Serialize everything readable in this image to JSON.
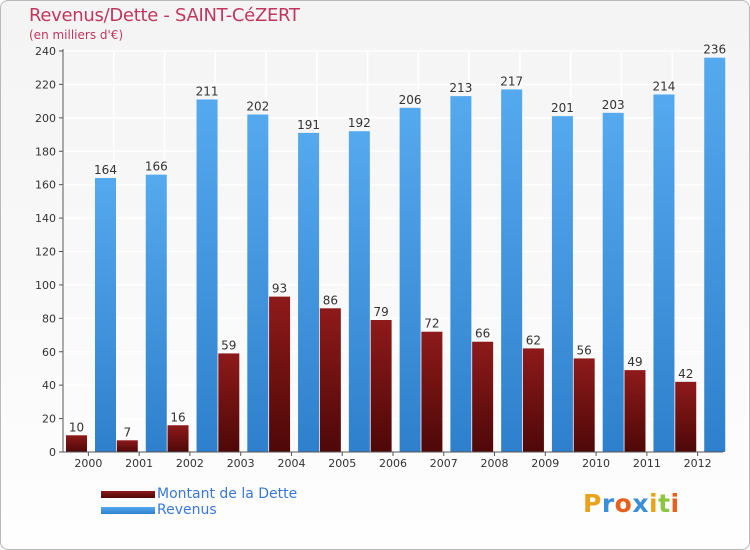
{
  "chart_data": {
    "type": "bar",
    "title": "Revenus/Dette - SAINT-CéZERT",
    "subtitle": "(en milliers d'€)",
    "categories": [
      "2000",
      "2001",
      "2002",
      "2003",
      "2004",
      "2005",
      "2006",
      "2007",
      "2008",
      "2009",
      "2010",
      "2011",
      "2012"
    ],
    "series": [
      {
        "name": "Montant de la Dette",
        "color": "#7a1414",
        "values": [
          10,
          7,
          16,
          59,
          93,
          86,
          79,
          72,
          66,
          62,
          56,
          49,
          42
        ]
      },
      {
        "name": "Revenus",
        "color": "#4a9ee6",
        "values": [
          164,
          166,
          211,
          202,
          191,
          192,
          206,
          213,
          217,
          201,
          203,
          214,
          236
        ]
      }
    ],
    "ylim": [
      0,
      240
    ],
    "yticks": [
      0,
      20,
      40,
      60,
      80,
      100,
      120,
      140,
      160,
      180,
      200,
      220,
      240
    ],
    "grid": true,
    "legend_position": "bottom-left"
  },
  "logo": {
    "letters": [
      "P",
      "r",
      "o",
      "x",
      "i",
      "t",
      "i"
    ],
    "colors": [
      "#e8a21c",
      "#3a8fd8",
      "#e8601c",
      "#3a8fd8",
      "#e8a21c",
      "#8cc63f",
      "#e8601c"
    ]
  }
}
